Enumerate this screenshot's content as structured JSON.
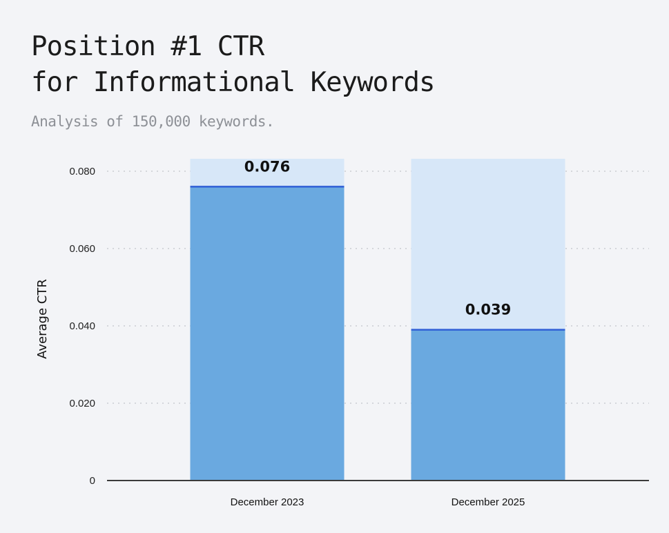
{
  "header": {
    "title_line1": "Position #1 CTR",
    "title_line2": "for Informational Keywords",
    "subtitle": "Analysis of 150,000 keywords."
  },
  "chart_data": {
    "type": "bar",
    "title": "Position #1 CTR for Informational Keywords",
    "subtitle": "Analysis of 150,000 keywords.",
    "categories": [
      "December 2023",
      "December 2025"
    ],
    "values": [
      0.076,
      0.039
    ],
    "value_labels": [
      "0.076",
      "0.039"
    ],
    "background_value": 0.08,
    "ylabel": "Average CTR",
    "xlabel": "",
    "ylim": [
      0,
      0.08
    ],
    "yticks": [
      0,
      0.02,
      0.04,
      0.06,
      0.08
    ],
    "ytick_labels": [
      "0",
      "0.020",
      "0.040",
      "0.060",
      "0.080"
    ],
    "grid": true,
    "colors": {
      "bar": "#6aa9e0",
      "bar_top_line": "#2f5fd6",
      "bar_background": "#d7e7f8",
      "grid": "#c9ccd2",
      "axis": "#3a3a3a"
    }
  }
}
